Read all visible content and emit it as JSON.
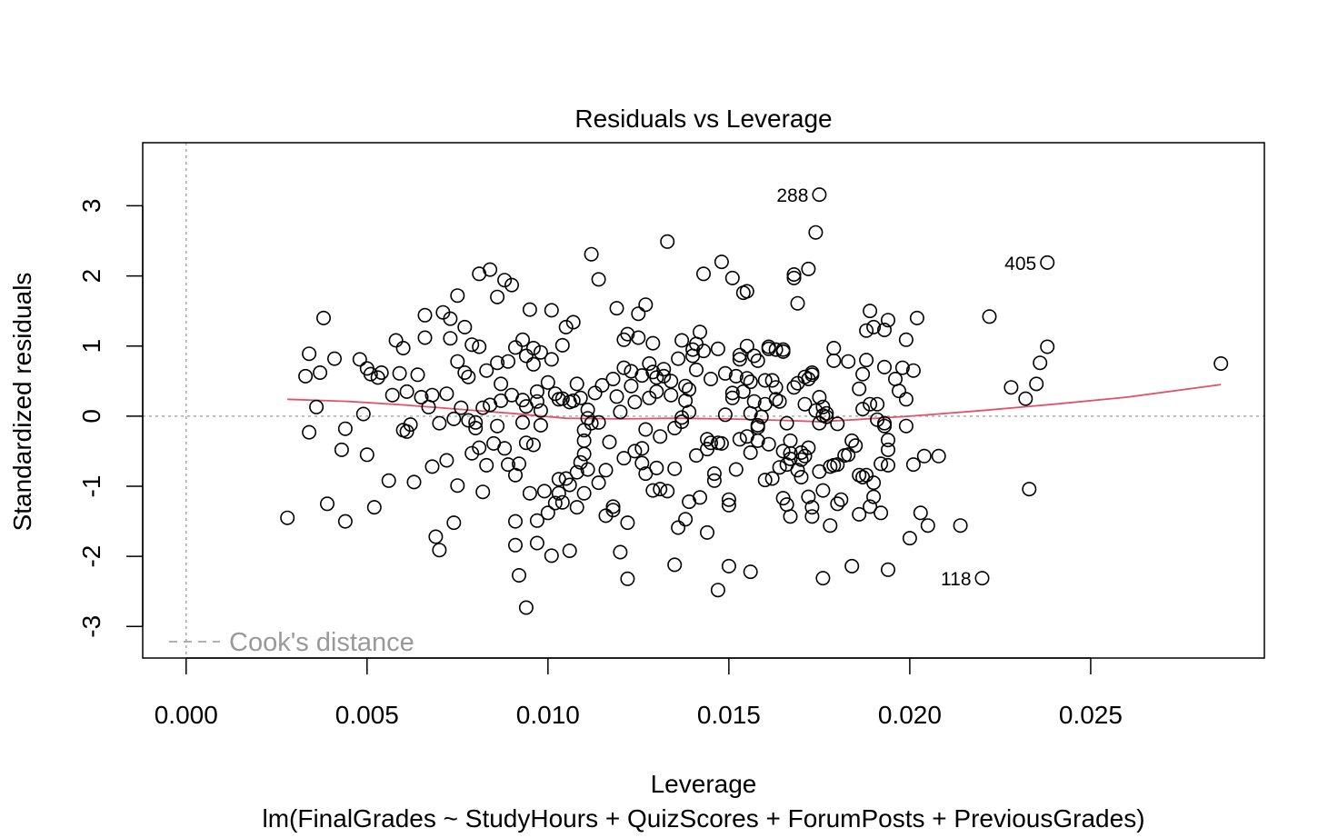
{
  "chart_data": {
    "type": "scatter",
    "title": "Residuals vs Leverage",
    "xlabel": "Leverage",
    "sublabel": "lm(FinalGrades ~ StudyHours + QuizScores + ForumPosts + PreviousGrades)",
    "ylabel": "Standardized residuals",
    "xlim": [
      -0.0012,
      0.0298
    ],
    "ylim": [
      -3.45,
      3.9
    ],
    "xticks": [
      "0.000",
      "0.005",
      "0.010",
      "0.015",
      "0.020",
      "0.025"
    ],
    "xtick_values": [
      0,
      0.005,
      0.01,
      0.015,
      0.02,
      0.025
    ],
    "yticks": [
      "-3",
      "-2",
      "-1",
      "0",
      "1",
      "2",
      "3"
    ],
    "ytick_values": [
      -3,
      -2,
      -1,
      0,
      1,
      2,
      3
    ],
    "legend": {
      "label": "Cook's distance",
      "position": "bottom-left",
      "color": "#999999"
    },
    "reference_lines": {
      "horizontal_y": 0,
      "vertical_x": 0,
      "style": "dotted",
      "color": "#aaaaaa"
    },
    "smoother": {
      "color": "#DF536B",
      "points": [
        [
          0.0028,
          0.24
        ],
        [
          0.0045,
          0.21
        ],
        [
          0.006,
          0.16
        ],
        [
          0.0075,
          0.1
        ],
        [
          0.009,
          0.04
        ],
        [
          0.0105,
          -0.03
        ],
        [
          0.012,
          -0.04
        ],
        [
          0.0135,
          -0.03
        ],
        [
          0.015,
          -0.04
        ],
        [
          0.0165,
          -0.06
        ],
        [
          0.0175,
          -0.08
        ],
        [
          0.0185,
          -0.05
        ],
        [
          0.02,
          0.0
        ],
        [
          0.022,
          0.08
        ],
        [
          0.024,
          0.17
        ],
        [
          0.026,
          0.27
        ],
        [
          0.0286,
          0.45
        ]
      ]
    },
    "labeled_points": [
      {
        "label": "288",
        "x": 0.0175,
        "y": 3.16
      },
      {
        "label": "405",
        "x": 0.0238,
        "y": 2.19
      },
      {
        "label": "118",
        "x": 0.022,
        "y": -2.31
      }
    ],
    "points": [
      [
        0.0028,
        -1.45
      ],
      [
        0.0033,
        0.57
      ],
      [
        0.0034,
        0.89
      ],
      [
        0.0034,
        -0.23
      ],
      [
        0.0036,
        0.13
      ],
      [
        0.0037,
        0.62
      ],
      [
        0.0038,
        1.4
      ],
      [
        0.0039,
        -1.25
      ],
      [
        0.0041,
        0.82
      ],
      [
        0.0043,
        -0.48
      ],
      [
        0.0044,
        -1.5
      ],
      [
        0.0044,
        -0.18
      ],
      [
        0.0048,
        0.81
      ],
      [
        0.0049,
        0.03
      ],
      [
        0.005,
        0.68
      ],
      [
        0.005,
        -0.55
      ],
      [
        0.0051,
        0.6
      ],
      [
        0.0052,
        -1.3
      ],
      [
        0.0053,
        0.55
      ],
      [
        0.0054,
        0.62
      ],
      [
        0.0056,
        -0.92
      ],
      [
        0.0057,
        0.3
      ],
      [
        0.0058,
        1.08
      ],
      [
        0.0059,
        0.61
      ],
      [
        0.006,
        -0.2
      ],
      [
        0.006,
        0.97
      ],
      [
        0.0061,
        -0.22
      ],
      [
        0.0061,
        0.35
      ],
      [
        0.0062,
        -0.12
      ],
      [
        0.0063,
        -0.94
      ],
      [
        0.0064,
        0.59
      ],
      [
        0.0065,
        0.27
      ],
      [
        0.0066,
        1.12
      ],
      [
        0.0066,
        1.44
      ],
      [
        0.0067,
        0.13
      ],
      [
        0.0068,
        0.3
      ],
      [
        0.0068,
        -0.72
      ],
      [
        0.0069,
        -1.72
      ],
      [
        0.007,
        -0.1
      ],
      [
        0.007,
        -1.91
      ],
      [
        0.0071,
        1.48
      ],
      [
        0.0072,
        0.32
      ],
      [
        0.0072,
        -0.63
      ],
      [
        0.0073,
        1.39
      ],
      [
        0.0073,
        1.11
      ],
      [
        0.0074,
        -0.04
      ],
      [
        0.0074,
        -1.52
      ],
      [
        0.0075,
        -0.99
      ],
      [
        0.0075,
        0.78
      ],
      [
        0.0075,
        1.72
      ],
      [
        0.0076,
        0.12
      ],
      [
        0.0077,
        0.62
      ],
      [
        0.0077,
        1.27
      ],
      [
        0.0078,
        0.56
      ],
      [
        0.0078,
        -0.06
      ],
      [
        0.0079,
        -0.53
      ],
      [
        0.0079,
        1.02
      ],
      [
        0.008,
        -0.17
      ],
      [
        0.008,
        -0.09
      ],
      [
        0.0081,
        0.99
      ],
      [
        0.0081,
        -0.45
      ],
      [
        0.0081,
        2.03
      ],
      [
        0.0082,
        0.12
      ],
      [
        0.0082,
        -1.08
      ],
      [
        0.0083,
        -0.7
      ],
      [
        0.0083,
        0.65
      ],
      [
        0.0084,
        0.16
      ],
      [
        0.0084,
        2.09
      ],
      [
        0.0085,
        -0.39
      ],
      [
        0.0086,
        0.76
      ],
      [
        0.0086,
        1.7
      ],
      [
        0.0086,
        -0.14
      ],
      [
        0.0087,
        0.46
      ],
      [
        0.0087,
        0.22
      ],
      [
        0.0088,
        -0.46
      ],
      [
        0.0088,
        1.94
      ],
      [
        0.0089,
        -0.69
      ],
      [
        0.0089,
        0.78
      ],
      [
        0.009,
        0.3
      ],
      [
        0.009,
        1.87
      ],
      [
        0.0091,
        -0.84
      ],
      [
        0.0091,
        0.98
      ],
      [
        0.0091,
        -1.5
      ],
      [
        0.0091,
        -1.84
      ],
      [
        0.0092,
        -0.68
      ],
      [
        0.0092,
        -2.27
      ],
      [
        0.0093,
        1.09
      ],
      [
        0.0093,
        0.23
      ],
      [
        0.0093,
        -0.09
      ],
      [
        0.0094,
        -0.38
      ],
      [
        0.0094,
        0.86
      ],
      [
        0.0094,
        0.14
      ],
      [
        0.0094,
        -2.73
      ],
      [
        0.0095,
        1.52
      ],
      [
        0.0095,
        -1.1
      ],
      [
        0.0096,
        0.74
      ],
      [
        0.0096,
        0.97
      ],
      [
        0.0096,
        -0.41
      ],
      [
        0.0097,
        -1.49
      ],
      [
        0.0097,
        0.35
      ],
      [
        0.0097,
        0.21
      ],
      [
        0.0097,
        -1.81
      ],
      [
        0.0098,
        0.91
      ],
      [
        0.0098,
        0.08
      ],
      [
        0.0098,
        -0.13
      ],
      [
        0.0099,
        -1.07
      ],
      [
        0.01,
        0.48
      ],
      [
        0.01,
        -1.38
      ],
      [
        0.0101,
        -1.99
      ],
      [
        0.0101,
        0.81
      ],
      [
        0.0101,
        1.51
      ],
      [
        0.0102,
        -1.24
      ],
      [
        0.0102,
        0.32
      ],
      [
        0.0103,
        0.24
      ],
      [
        0.0103,
        -1.1
      ],
      [
        0.0103,
        -0.9
      ],
      [
        0.0104,
        -1.23
      ],
      [
        0.0104,
        1.01
      ],
      [
        0.0104,
        0.25
      ],
      [
        0.0105,
        1.27
      ],
      [
        0.0105,
        -0.89
      ],
      [
        0.0106,
        -0.98
      ],
      [
        0.0106,
        0.2
      ],
      [
        0.0106,
        -1.92
      ],
      [
        0.0107,
        0.22
      ],
      [
        0.0107,
        1.34
      ],
      [
        0.0108,
        0.46
      ],
      [
        0.0108,
        -1.3
      ],
      [
        0.0108,
        -0.8
      ],
      [
        0.0109,
        0.26
      ],
      [
        0.0109,
        -0.66
      ],
      [
        0.011,
        -0.54
      ],
      [
        0.011,
        -0.35
      ],
      [
        0.011,
        -0.2
      ],
      [
        0.011,
        -1.1
      ],
      [
        0.0111,
        0.09
      ],
      [
        0.0111,
        -0.76
      ],
      [
        0.0111,
        -0.03
      ],
      [
        0.0112,
        2.31
      ],
      [
        0.0112,
        -0.1
      ],
      [
        0.0113,
        0.33
      ],
      [
        0.0114,
        -0.09
      ],
      [
        0.0114,
        -0.95
      ],
      [
        0.0114,
        1.95
      ],
      [
        0.0115,
        0.44
      ],
      [
        0.0116,
        -0.77
      ],
      [
        0.0116,
        -1.42
      ],
      [
        0.0117,
        -0.37
      ],
      [
        0.0118,
        0.53
      ],
      [
        0.0118,
        -1.34
      ],
      [
        0.0118,
        -1.29
      ],
      [
        0.0119,
        1.54
      ],
      [
        0.0119,
        0.28
      ],
      [
        0.012,
        -1.94
      ],
      [
        0.012,
        0.06
      ],
      [
        0.0121,
        1.09
      ],
      [
        0.0121,
        0.69
      ],
      [
        0.0121,
        -0.6
      ],
      [
        0.0122,
        -1.52
      ],
      [
        0.0122,
        1.17
      ],
      [
        0.0122,
        -2.32
      ],
      [
        0.0123,
        0.43
      ],
      [
        0.0123,
        0.64
      ],
      [
        0.0124,
        -0.5
      ],
      [
        0.0124,
        0.2
      ],
      [
        0.0125,
        1.46
      ],
      [
        0.0125,
        1.12
      ],
      [
        0.0126,
        0.58
      ],
      [
        0.0126,
        -0.46
      ],
      [
        0.0126,
        -0.67
      ],
      [
        0.0127,
        1.59
      ],
      [
        0.0127,
        -0.19
      ],
      [
        0.0127,
        -0.82
      ],
      [
        0.0128,
        0.75
      ],
      [
        0.0128,
        0.26
      ],
      [
        0.0129,
        0.63
      ],
      [
        0.0129,
        1.04
      ],
      [
        0.0129,
        -1.06
      ],
      [
        0.013,
        -0.74
      ],
      [
        0.013,
        0.55
      ],
      [
        0.013,
        0.35
      ],
      [
        0.0131,
        -1.04
      ],
      [
        0.0131,
        -0.29
      ],
      [
        0.0132,
        0.67
      ],
      [
        0.0132,
        0.57
      ],
      [
        0.0133,
        -1.07
      ],
      [
        0.0133,
        2.49
      ],
      [
        0.0134,
        0.3
      ],
      [
        0.0134,
        0.5
      ],
      [
        0.0135,
        -2.12
      ],
      [
        0.0135,
        -0.17
      ],
      [
        0.0135,
        -0.75
      ],
      [
        0.0136,
        0.82
      ],
      [
        0.0136,
        -1.59
      ],
      [
        0.0137,
        -0.08
      ],
      [
        0.0137,
        1.08
      ],
      [
        0.0137,
        -0.02
      ],
      [
        0.0138,
        0.43
      ],
      [
        0.0138,
        -1.47
      ],
      [
        0.0138,
        0.22
      ],
      [
        0.0139,
        0.06
      ],
      [
        0.0139,
        -1.22
      ],
      [
        0.0139,
        0.38
      ],
      [
        0.014,
        0.86
      ],
      [
        0.014,
        0.95
      ],
      [
        0.0141,
        0.66
      ],
      [
        0.0141,
        -0.56
      ],
      [
        0.0141,
        1.03
      ],
      [
        0.0142,
        1.2
      ],
      [
        0.0142,
        -1.16
      ],
      [
        0.0143,
        0.93
      ],
      [
        0.0143,
        2.03
      ],
      [
        0.0144,
        -0.33
      ],
      [
        0.0144,
        -0.47
      ],
      [
        0.0144,
        -1.66
      ],
      [
        0.0145,
        0.53
      ],
      [
        0.0145,
        -0.38
      ],
      [
        0.0146,
        -0.82
      ],
      [
        0.0146,
        -0.92
      ],
      [
        0.0147,
        -2.48
      ],
      [
        0.0147,
        -0.38
      ],
      [
        0.0147,
        0.96
      ],
      [
        0.0148,
        2.2
      ],
      [
        0.0148,
        -0.39
      ],
      [
        0.0149,
        0.61
      ],
      [
        0.0149,
        0.02
      ],
      [
        0.015,
        -2.14
      ],
      [
        0.015,
        -1.19
      ],
      [
        0.015,
        -1.27
      ],
      [
        0.0151,
        0.33
      ],
      [
        0.0151,
        0.26
      ],
      [
        0.0151,
        1.97
      ],
      [
        0.0152,
        0.57
      ],
      [
        0.0152,
        -0.76
      ],
      [
        0.0153,
        0.87
      ],
      [
        0.0153,
        -0.33
      ],
      [
        0.0153,
        0.81
      ],
      [
        0.0154,
        1.76
      ],
      [
        0.0154,
        0.35
      ],
      [
        0.0155,
        0.54
      ],
      [
        0.0155,
        -0.29
      ],
      [
        0.0155,
        1.0
      ],
      [
        0.0155,
        1.78
      ],
      [
        0.0156,
        0.49
      ],
      [
        0.0156,
        0.04
      ],
      [
        0.0156,
        -2.22
      ],
      [
        0.0156,
        -0.52
      ],
      [
        0.0157,
        0.21
      ],
      [
        0.0157,
        0.86
      ],
      [
        0.0158,
        -0.13
      ],
      [
        0.0158,
        0.79
      ],
      [
        0.0158,
        -0.35
      ],
      [
        0.0158,
        -0.16
      ],
      [
        0.0159,
        -0.01
      ],
      [
        0.016,
        0.51
      ],
      [
        0.016,
        0.17
      ],
      [
        0.016,
        -0.91
      ],
      [
        0.0161,
        0.96
      ],
      [
        0.0161,
        -0.4
      ],
      [
        0.0161,
        0.99
      ],
      [
        0.0162,
        0.51
      ],
      [
        0.0162,
        -0.89
      ],
      [
        0.0163,
        0.41
      ],
      [
        0.0163,
        0.24
      ],
      [
        0.0163,
        0.95
      ],
      [
        0.0164,
        0.21
      ],
      [
        0.0164,
        -0.73
      ],
      [
        0.0165,
        0.95
      ],
      [
        0.0165,
        0.92
      ],
      [
        0.0165,
        -1.17
      ],
      [
        0.0165,
        -0.5
      ],
      [
        0.0166,
        -0.69
      ],
      [
        0.0166,
        -1.26
      ],
      [
        0.0166,
        -0.1
      ],
      [
        0.0167,
        -0.61
      ],
      [
        0.0167,
        -0.53
      ],
      [
        0.0167,
        -1.43
      ],
      [
        0.0167,
        -0.35
      ],
      [
        0.0168,
        0.41
      ],
      [
        0.0168,
        1.97
      ],
      [
        0.0168,
        2.02
      ],
      [
        0.0169,
        0.47
      ],
      [
        0.0169,
        1.61
      ],
      [
        0.0169,
        -0.77
      ],
      [
        0.017,
        -0.52
      ],
      [
        0.017,
        -0.62
      ],
      [
        0.017,
        -0.87
      ],
      [
        0.0171,
        0.56
      ],
      [
        0.0171,
        0.17
      ],
      [
        0.0171,
        -0.57
      ],
      [
        0.0172,
        -1.15
      ],
      [
        0.0172,
        0.53
      ],
      [
        0.0172,
        -0.45
      ],
      [
        0.0172,
        2.1
      ],
      [
        0.0173,
        0.59
      ],
      [
        0.0173,
        -1.43
      ],
      [
        0.0173,
        -1.3
      ],
      [
        0.0173,
        0.62
      ],
      [
        0.0174,
        0.08
      ],
      [
        0.0174,
        2.62
      ],
      [
        0.0175,
        0.27
      ],
      [
        0.0175,
        -0.79
      ],
      [
        0.0175,
        -0.1
      ],
      [
        0.0176,
        0.01
      ],
      [
        0.0176,
        -1.06
      ],
      [
        0.0176,
        0.13
      ],
      [
        0.0176,
        -2.31
      ],
      [
        0.0177,
        -0.01
      ],
      [
        0.0177,
        0.04
      ],
      [
        0.0178,
        -1.56
      ],
      [
        0.0178,
        -0.72
      ],
      [
        0.0179,
        0.97
      ],
      [
        0.0179,
        -0.7
      ],
      [
        0.0179,
        0.79
      ],
      [
        0.018,
        -1.25
      ],
      [
        0.018,
        -0.11
      ],
      [
        0.018,
        -0.69
      ],
      [
        0.0181,
        -1.19
      ],
      [
        0.0182,
        -0.56
      ],
      [
        0.0183,
        0.78
      ],
      [
        0.0183,
        -0.55
      ],
      [
        0.0184,
        -0.35
      ],
      [
        0.0184,
        -2.14
      ],
      [
        0.0185,
        -0.42
      ],
      [
        0.0186,
        0.39
      ],
      [
        0.0186,
        -1.4
      ],
      [
        0.0186,
        -0.84
      ],
      [
        0.0187,
        0.1
      ],
      [
        0.0187,
        -0.87
      ],
      [
        0.0187,
        0.6
      ],
      [
        0.0188,
        1.22
      ],
      [
        0.0188,
        0.8
      ],
      [
        0.0188,
        -0.84
      ],
      [
        0.0189,
        0.17
      ],
      [
        0.0189,
        1.5
      ],
      [
        0.0189,
        -1.29
      ],
      [
        0.019,
        -0.95
      ],
      [
        0.019,
        -1.15
      ],
      [
        0.019,
        1.27
      ],
      [
        0.0191,
        -0.05
      ],
      [
        0.0191,
        0.17
      ],
      [
        0.0192,
        -0.68
      ],
      [
        0.0192,
        -1.38
      ],
      [
        0.0193,
        0.7
      ],
      [
        0.0193,
        -0.1
      ],
      [
        0.0193,
        -0.14
      ],
      [
        0.0193,
        1.23
      ],
      [
        0.0194,
        1.37
      ],
      [
        0.0194,
        -0.34
      ],
      [
        0.0194,
        -0.48
      ],
      [
        0.0194,
        -0.7
      ],
      [
        0.0194,
        -2.19
      ],
      [
        0.0196,
        0.53
      ],
      [
        0.0197,
        0.36
      ],
      [
        0.0198,
        0.69
      ],
      [
        0.0199,
        1.09
      ],
      [
        0.0199,
        -0.14
      ],
      [
        0.0199,
        0.24
      ],
      [
        0.02,
        -1.74
      ],
      [
        0.0201,
        0.65
      ],
      [
        0.0201,
        -0.69
      ],
      [
        0.0202,
        1.4
      ],
      [
        0.0203,
        -1.38
      ],
      [
        0.0204,
        -0.57
      ],
      [
        0.0205,
        -1.56
      ],
      [
        0.0214,
        -1.56
      ],
      [
        0.0208,
        -0.57
      ],
      [
        0.0222,
        1.42
      ],
      [
        0.0228,
        0.41
      ],
      [
        0.0232,
        0.25
      ],
      [
        0.0233,
        -1.04
      ],
      [
        0.0235,
        0.46
      ],
      [
        0.0236,
        0.76
      ],
      [
        0.0238,
        0.99
      ],
      [
        0.0286,
        0.75
      ]
    ]
  }
}
